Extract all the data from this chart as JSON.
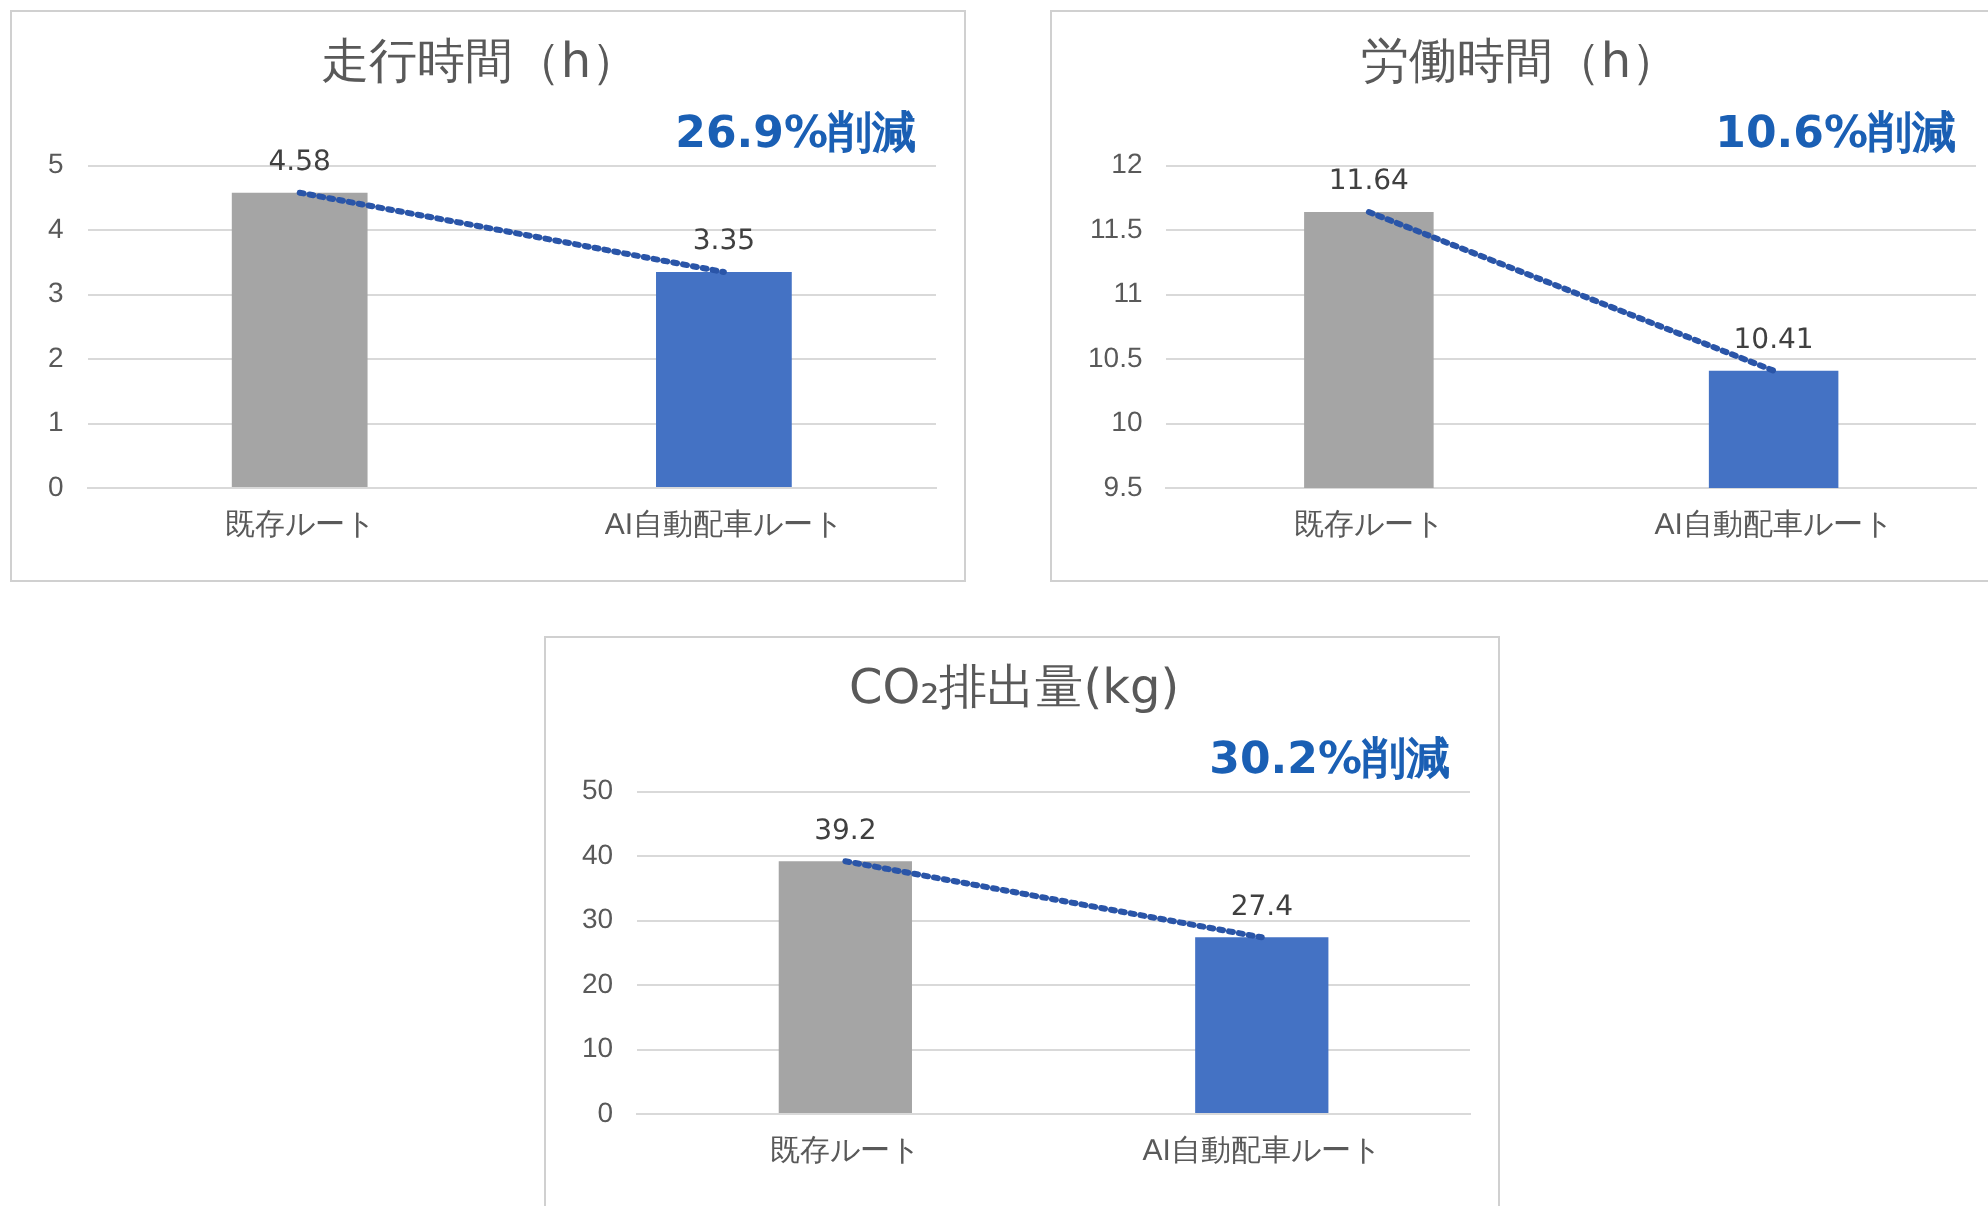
{
  "chart_data": [
    {
      "type": "bar",
      "title": "走行時間（h）",
      "categories": [
        "既存ルート",
        "AI自動配車ルート"
      ],
      "ylim": [
        0,
        5
      ],
      "yticks": [
        0,
        1,
        2,
        3,
        4,
        5
      ],
      "grid": "y",
      "legend": false,
      "annotations": [
        "26.9%削減"
      ],
      "series": [
        {
          "values": [
            4.58,
            3.35
          ],
          "value_labels": [
            "4.58",
            "3.35"
          ],
          "colors": [
            "#a5a5a5",
            "#4472c4"
          ]
        },
        {
          "type": "line",
          "values": [
            4.58,
            3.35
          ],
          "color": "#2a55a8",
          "line_style": "dotted",
          "marker": "none"
        }
      ]
    },
    {
      "type": "bar",
      "title": "労働時間（h）",
      "categories": [
        "既存ルート",
        "AI自動配車ルート"
      ],
      "ylim": [
        9.5,
        12
      ],
      "yticks": [
        9.5,
        10,
        10.5,
        11,
        11.5,
        12
      ],
      "grid": "y",
      "legend": false,
      "annotations": [
        "10.6%削減"
      ],
      "series": [
        {
          "values": [
            11.64,
            10.41
          ],
          "value_labels": [
            "11.64",
            "10.41"
          ],
          "colors": [
            "#a5a5a5",
            "#4472c4"
          ]
        },
        {
          "type": "line",
          "values": [
            11.64,
            10.41
          ],
          "color": "#2a55a8",
          "line_style": "dotted",
          "marker": "none"
        }
      ]
    },
    {
      "type": "bar",
      "title": "CO₂排出量(kg)",
      "categories": [
        "既存ルート",
        "AI自動配車ルート"
      ],
      "ylim": [
        0,
        50
      ],
      "yticks": [
        0,
        10,
        20,
        30,
        40,
        50
      ],
      "grid": "y",
      "legend": false,
      "annotations": [
        "30.2%削減"
      ],
      "series": [
        {
          "values": [
            39.2,
            27.4
          ],
          "value_labels": [
            "39.2",
            "27.4"
          ],
          "colors": [
            "#a5a5a5",
            "#4472c4"
          ]
        },
        {
          "type": "line",
          "values": [
            39.2,
            27.4
          ],
          "color": "#2a55a8",
          "line_style": "dotted",
          "marker": "none"
        }
      ]
    }
  ]
}
